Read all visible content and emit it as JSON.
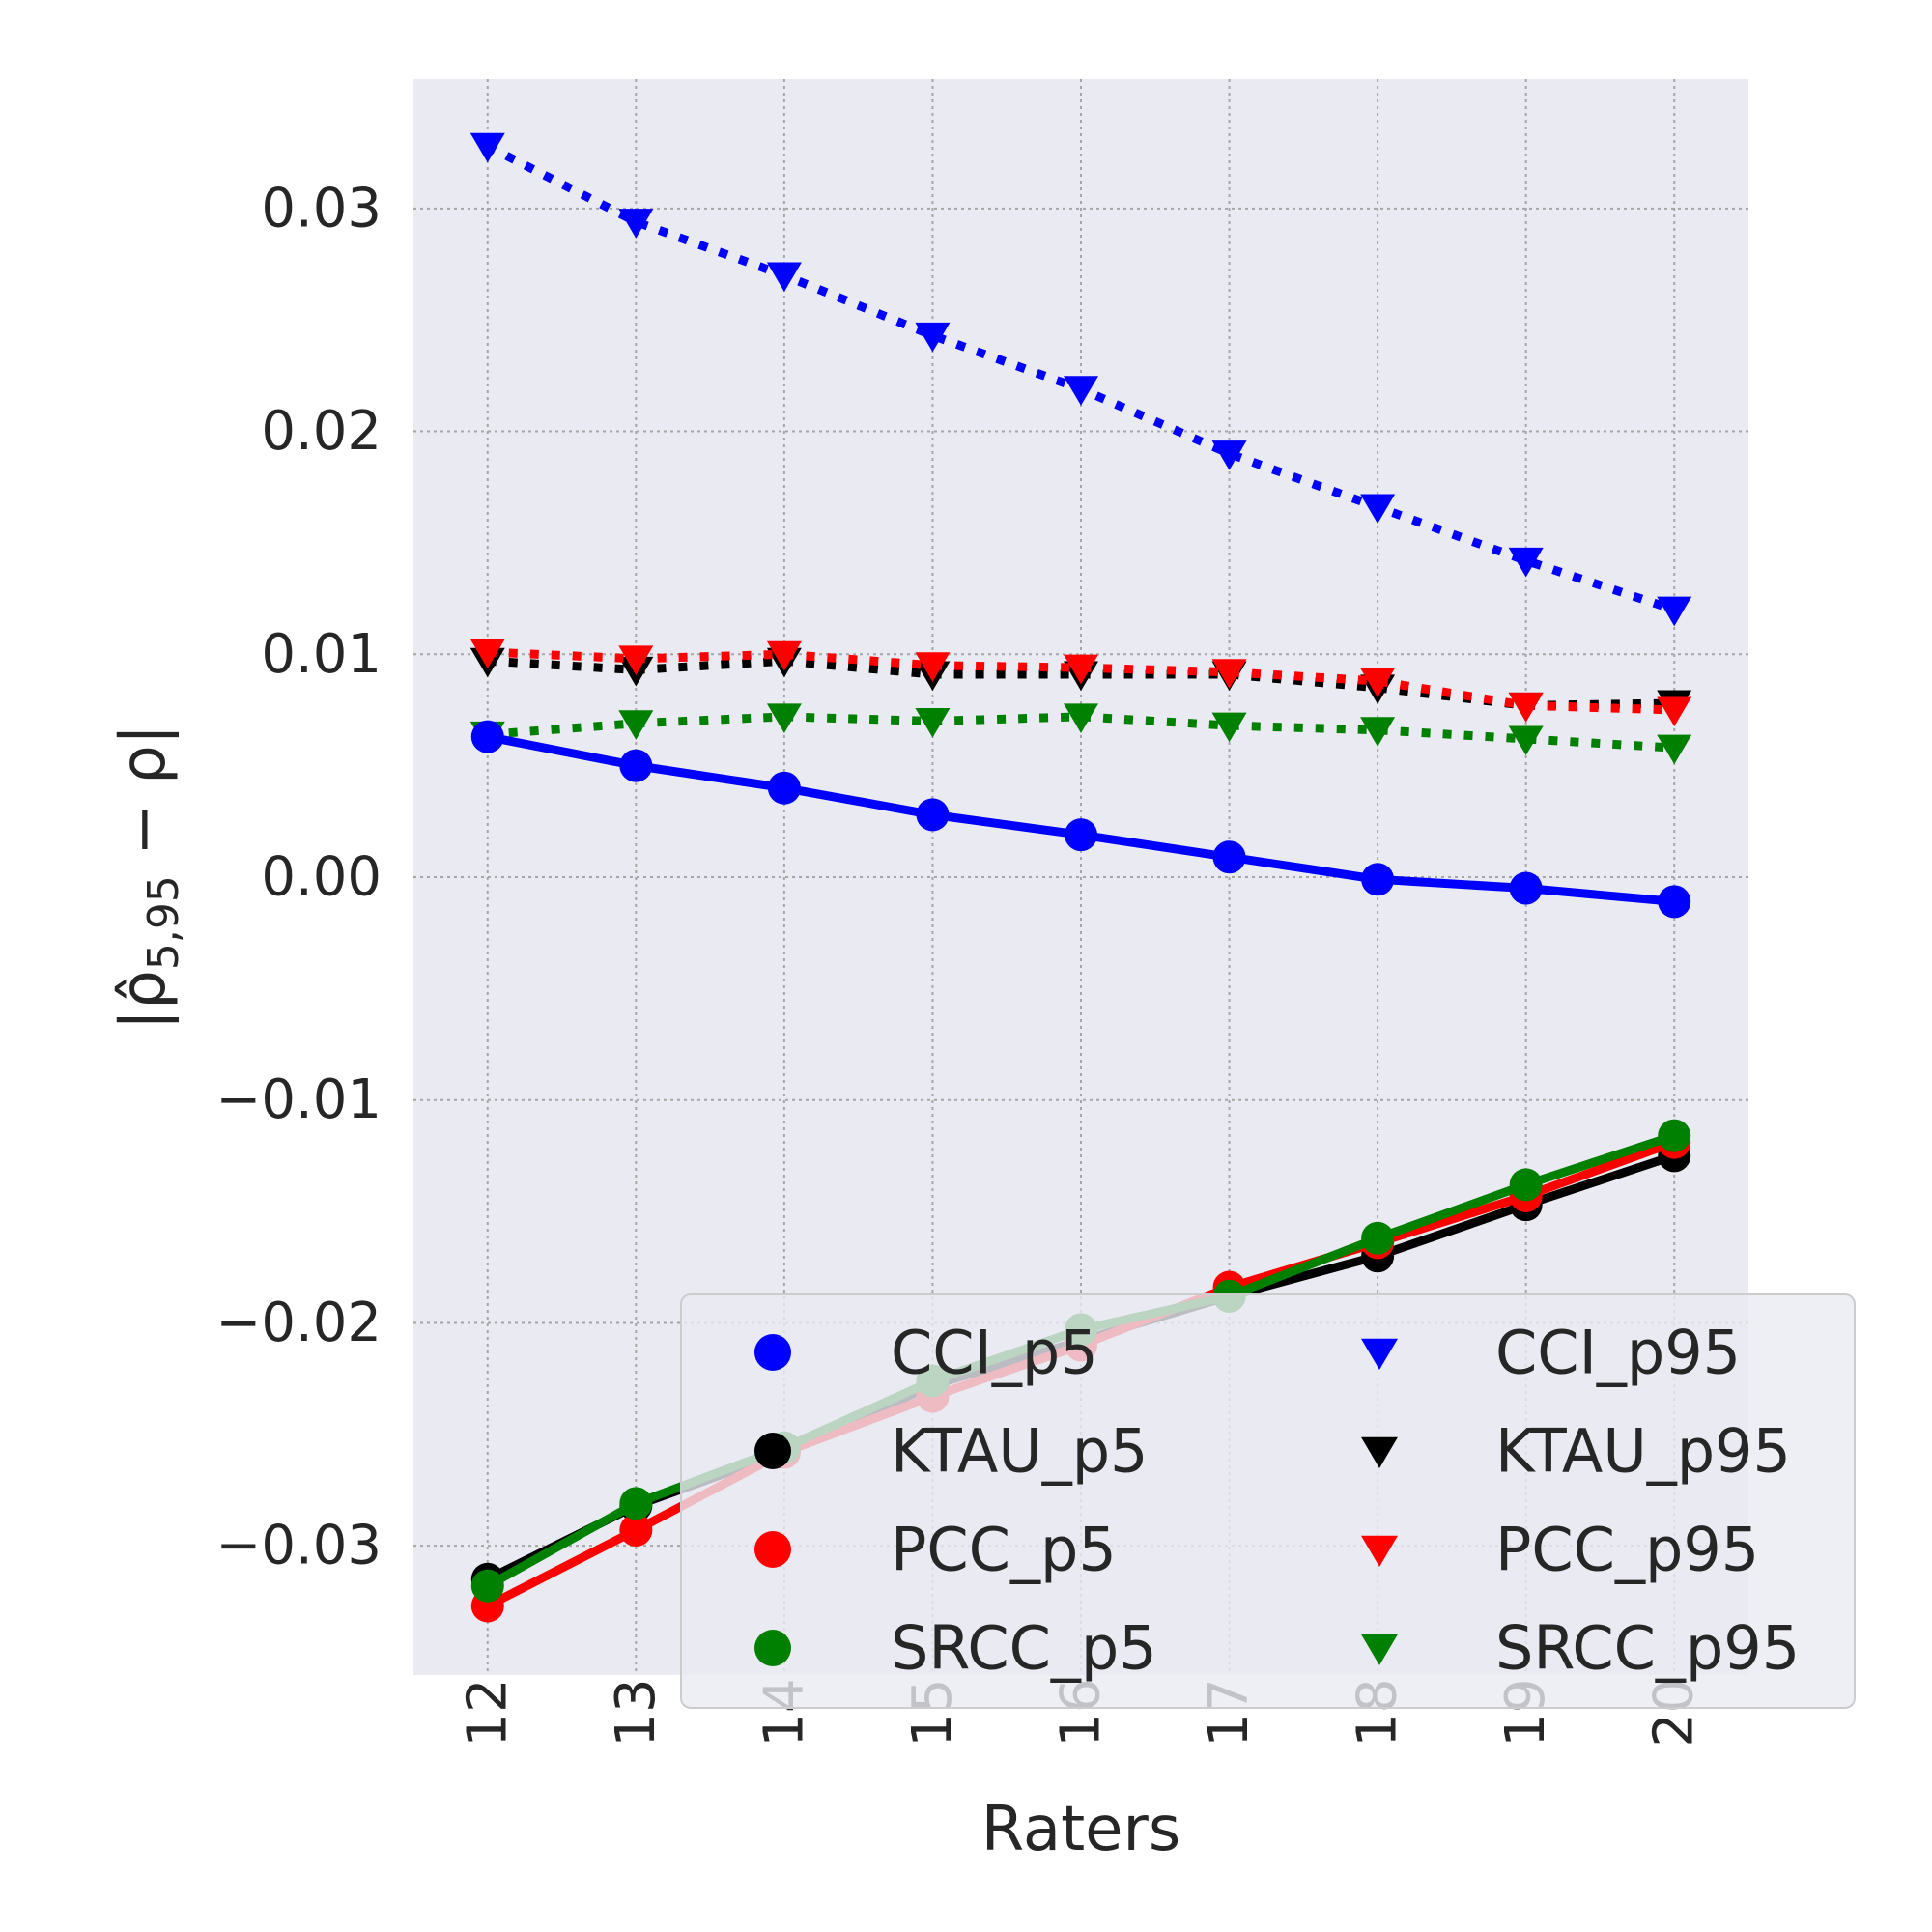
{
  "chart_data": {
    "type": "line",
    "xlabel": "Raters",
    "ylabel": "|ρ̂5,95 − ρ|",
    "x": [
      12,
      13,
      14,
      15,
      16,
      17,
      18,
      19,
      20
    ],
    "x_tick_labels": [
      "12",
      "13",
      "14",
      "15",
      "16",
      "17",
      "18",
      "19",
      "20"
    ],
    "y_ticks": [
      -0.03,
      -0.02,
      -0.01,
      0.0,
      0.01,
      0.02,
      0.03
    ],
    "y_tick_labels": [
      "−0.03",
      "−0.02",
      "−0.01",
      "0.00",
      "0.01",
      "0.02",
      "0.03"
    ],
    "xlim": [
      11.5,
      20.5
    ],
    "ylim": [
      -0.0358,
      0.0358
    ],
    "grid": true,
    "legend_placement": "lower-right",
    "series": [
      {
        "name": "CCI_p5",
        "color": "#0000ff",
        "marker": "circle",
        "linestyle": "solid",
        "values": [
          0.0063,
          0.005,
          0.004,
          0.0028,
          0.0019,
          0.0009,
          -0.0001,
          -0.0005,
          -0.0011
        ]
      },
      {
        "name": "KTAU_p5",
        "color": "#000000",
        "marker": "circle",
        "linestyle": "solid",
        "values": [
          -0.0315,
          -0.0282,
          -0.0258,
          -0.0228,
          -0.0208,
          -0.0188,
          -0.017,
          -0.0147,
          -0.0125
        ]
      },
      {
        "name": "PCC_p5",
        "color": "#ff0000",
        "marker": "circle",
        "linestyle": "solid",
        "values": [
          -0.0327,
          -0.0293,
          -0.0258,
          -0.0233,
          -0.021,
          -0.0184,
          -0.0164,
          -0.0143,
          -0.0119
        ]
      },
      {
        "name": "SRCC_p5",
        "color": "#008000",
        "marker": "circle",
        "linestyle": "solid",
        "values": [
          -0.0318,
          -0.0281,
          -0.0256,
          -0.0226,
          -0.0203,
          -0.0188,
          -0.0162,
          -0.0138,
          -0.0116
        ]
      },
      {
        "name": "CCI_p95",
        "color": "#0000ff",
        "marker": "triangle-down",
        "linestyle": "dotted",
        "values": [
          0.0328,
          0.0294,
          0.027,
          0.0243,
          0.0219,
          0.019,
          0.0166,
          0.0142,
          0.012
        ]
      },
      {
        "name": "KTAU_p95",
        "color": "#000000",
        "marker": "triangle-down",
        "linestyle": "dotted",
        "values": [
          0.0097,
          0.0093,
          0.0097,
          0.0091,
          0.0091,
          0.0091,
          0.0085,
          0.0077,
          0.0078
        ]
      },
      {
        "name": "PCC_p95",
        "color": "#ff0000",
        "marker": "triangle-down",
        "linestyle": "dotted",
        "values": [
          0.0101,
          0.0098,
          0.01,
          0.0095,
          0.0094,
          0.0092,
          0.0088,
          0.0077,
          0.0075
        ]
      },
      {
        "name": "SRCC_p95",
        "color": "#008000",
        "marker": "triangle-down",
        "linestyle": "dotted",
        "values": [
          0.0064,
          0.0069,
          0.0072,
          0.007,
          0.0072,
          0.0068,
          0.0066,
          0.0062,
          0.0058
        ]
      }
    ],
    "legend_order": [
      "CCI_p5",
      "CCI_p95",
      "KTAU_p5",
      "KTAU_p95",
      "PCC_p5",
      "PCC_p95",
      "SRCC_p5",
      "SRCC_p95"
    ]
  },
  "colors": {
    "plot_background": "#eaeaf2",
    "grid": "#a6a6a6",
    "text": "#262626"
  }
}
